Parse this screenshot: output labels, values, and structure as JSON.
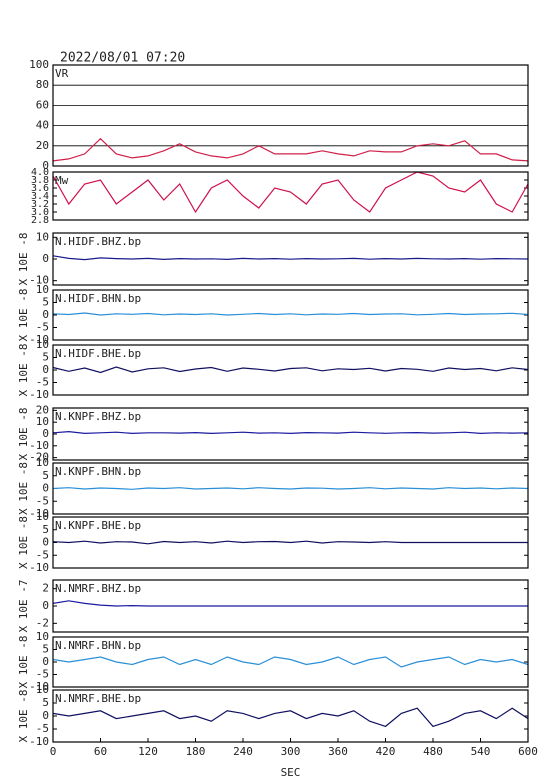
{
  "chart_data": [
    {
      "type": "line",
      "title": "2022/08/01  07:20",
      "label": "VR",
      "grid": true,
      "x": [
        0,
        20,
        40,
        60,
        80,
        100,
        120,
        140,
        160,
        180,
        200,
        220,
        240,
        260,
        280,
        300,
        320,
        340,
        360,
        380,
        400,
        420,
        440,
        460,
        480,
        500,
        520,
        540,
        560,
        580,
        600
      ],
      "xlim": [
        0,
        600
      ],
      "ylim": [
        0,
        100
      ],
      "yticks": [
        0,
        20,
        40,
        60,
        80,
        100
      ],
      "series": [
        {
          "color": "#d0204a",
          "values": [
            5,
            7,
            12,
            27,
            12,
            8,
            10,
            15,
            22,
            14,
            10,
            8,
            12,
            20,
            12,
            12,
            12,
            15,
            12,
            10,
            15,
            14,
            14,
            20,
            22,
            20,
            25,
            12,
            12,
            6,
            5
          ]
        }
      ]
    },
    {
      "type": "line",
      "label": "Mw",
      "grid": false,
      "x": [
        0,
        20,
        40,
        60,
        80,
        100,
        120,
        140,
        160,
        180,
        200,
        220,
        240,
        260,
        280,
        300,
        320,
        340,
        360,
        380,
        400,
        420,
        440,
        460,
        480,
        500,
        520,
        540,
        560,
        580,
        600
      ],
      "xlim": [
        0,
        600
      ],
      "ylim": [
        2.8,
        4.0
      ],
      "yticks": [
        {
          "value": 2.8,
          "label": "2.8"
        },
        {
          "value": 3.0,
          "label": "3.0"
        },
        {
          "value": 3.2,
          "label": "3.2"
        },
        {
          "value": 3.4,
          "label": "3.4"
        },
        {
          "value": 3.6,
          "label": "3.6"
        },
        {
          "value": 3.8,
          "label": "3.8"
        },
        {
          "value": 4.0,
          "label": "4.0"
        }
      ],
      "series": [
        {
          "color": "#d0104a",
          "values": [
            3.9,
            3.2,
            3.7,
            3.8,
            3.2,
            3.5,
            3.8,
            3.3,
            3.7,
            3.0,
            3.6,
            3.8,
            3.4,
            3.1,
            3.6,
            3.5,
            3.2,
            3.7,
            3.8,
            3.3,
            3.0,
            3.6,
            3.8,
            4.0,
            3.9,
            3.6,
            3.5,
            3.8,
            3.2,
            3.0,
            3.7
          ]
        }
      ]
    },
    {
      "type": "line",
      "label": "N.HIDF.BHZ.bp",
      "ylabel": "X 10E -8",
      "x": [
        0,
        20,
        40,
        60,
        80,
        100,
        120,
        140,
        160,
        180,
        200,
        220,
        240,
        260,
        280,
        300,
        320,
        340,
        360,
        380,
        400,
        420,
        440,
        460,
        480,
        500,
        520,
        540,
        560,
        580,
        600
      ],
      "xlim": [
        0,
        600
      ],
      "ylim": [
        -12,
        12
      ],
      "yticks": [
        -10,
        0,
        10
      ],
      "series": [
        {
          "color": "#1a1a8c",
          "values": [
            1.5,
            0.3,
            -0.3,
            0.5,
            0.2,
            0,
            0.3,
            -0.2,
            0.2,
            0,
            0.1,
            -0.2,
            0.3,
            0,
            0.2,
            -0.1,
            0.2,
            0,
            0.1,
            0.3,
            -0.1,
            0.2,
            0,
            0.3,
            0.1,
            0,
            0.2,
            -0.1,
            0.2,
            0.1,
            0
          ]
        }
      ]
    },
    {
      "type": "line",
      "label": "N.HIDF.BHN.bp",
      "ylabel": "X 10E -8",
      "x": [
        0,
        20,
        40,
        60,
        80,
        100,
        120,
        140,
        160,
        180,
        200,
        220,
        240,
        260,
        280,
        300,
        320,
        340,
        360,
        380,
        400,
        420,
        440,
        460,
        480,
        500,
        520,
        540,
        560,
        580,
        600
      ],
      "xlim": [
        0,
        600
      ],
      "ylim": [
        -10,
        10
      ],
      "yticks": [
        -10,
        -5,
        0,
        5,
        10
      ],
      "series": [
        {
          "color": "#2a8fd6",
          "values": [
            0.5,
            0.2,
            0.8,
            0,
            0.5,
            0.3,
            0.6,
            0.1,
            0.4,
            0.2,
            0.5,
            0,
            0.3,
            0.6,
            0.2,
            0.5,
            0.1,
            0.4,
            0.3,
            0.6,
            0.2,
            0.4,
            0.5,
            0.1,
            0.3,
            0.6,
            0.2,
            0.4,
            0.5,
            0.7,
            0.2
          ]
        }
      ]
    },
    {
      "type": "line",
      "label": "N.HIDF.BHE.bp",
      "ylabel": "X 10E -8",
      "x": [
        0,
        20,
        40,
        60,
        80,
        100,
        120,
        140,
        160,
        180,
        200,
        220,
        240,
        260,
        280,
        300,
        320,
        340,
        360,
        380,
        400,
        420,
        440,
        460,
        480,
        500,
        520,
        540,
        560,
        580,
        600
      ],
      "xlim": [
        0,
        600
      ],
      "ylim": [
        -10,
        10
      ],
      "yticks": [
        -10,
        -5,
        0,
        5,
        10
      ],
      "series": [
        {
          "color": "#101060",
          "values": [
            1,
            -0.5,
            0.8,
            -1,
            1.2,
            -0.8,
            0.5,
            0.9,
            -0.6,
            0.4,
            1,
            -0.5,
            0.8,
            0.3,
            -0.4,
            0.6,
            0.9,
            -0.3,
            0.5,
            0.2,
            0.7,
            -0.4,
            0.6,
            0.3,
            -0.5,
            0.8,
            0.2,
            0.6,
            -0.3,
            0.9,
            0.2
          ]
        }
      ]
    },
    {
      "type": "line",
      "label": "N.KNPF.BHZ.bp",
      "ylabel": "X 10E -8",
      "x": [
        0,
        20,
        40,
        60,
        80,
        100,
        120,
        140,
        160,
        180,
        200,
        220,
        240,
        260,
        280,
        300,
        320,
        340,
        360,
        380,
        400,
        420,
        440,
        460,
        480,
        500,
        520,
        540,
        560,
        580,
        600
      ],
      "xlim": [
        0,
        600
      ],
      "ylim": [
        -22,
        22
      ],
      "yticks": [
        -20,
        -10,
        0,
        10,
        20
      ],
      "series": [
        {
          "color": "#1a1aa0",
          "values": [
            1,
            2,
            0.5,
            1,
            1.5,
            0.5,
            1,
            1,
            0.8,
            1.2,
            0.5,
            1,
            1.5,
            0.8,
            1,
            0.5,
            1.2,
            1,
            0.8,
            1.5,
            1,
            0.6,
            1,
            1.2,
            0.8,
            1,
            1.5,
            0.5,
            1,
            0.8,
            1
          ]
        }
      ]
    },
    {
      "type": "line",
      "label": "N.KNPF.BHN.bp",
      "ylabel": "X 10E -8",
      "x": [
        0,
        20,
        40,
        60,
        80,
        100,
        120,
        140,
        160,
        180,
        200,
        220,
        240,
        260,
        280,
        300,
        320,
        340,
        360,
        380,
        400,
        420,
        440,
        460,
        480,
        500,
        520,
        540,
        560,
        580,
        600
      ],
      "xlim": [
        0,
        600
      ],
      "ylim": [
        -10,
        10
      ],
      "yticks": [
        -10,
        -5,
        0,
        5,
        10
      ],
      "series": [
        {
          "color": "#2a8fd6",
          "values": [
            0,
            0.3,
            -0.2,
            0.2,
            0,
            -0.3,
            0.2,
            0,
            0.3,
            -0.2,
            0,
            0.2,
            -0.1,
            0.3,
            0,
            -0.2,
            0.2,
            0.1,
            -0.2,
            0,
            0.3,
            -0.1,
            0.2,
            0,
            -0.2,
            0.3,
            0,
            0.2,
            -0.1,
            0.2,
            0
          ]
        }
      ]
    },
    {
      "type": "line",
      "label": "N.KNPF.BHE.bp",
      "ylabel": "X 10E -8",
      "x": [
        0,
        20,
        40,
        60,
        80,
        100,
        120,
        140,
        160,
        180,
        200,
        220,
        240,
        260,
        280,
        300,
        320,
        340,
        360,
        380,
        400,
        420,
        440,
        460,
        480,
        500,
        520,
        540,
        560,
        580,
        600
      ],
      "xlim": [
        0,
        600
      ],
      "ylim": [
        -10,
        10
      ],
      "yticks": [
        -10,
        -5,
        0,
        5,
        10
      ],
      "series": [
        {
          "color": "#101060",
          "values": [
            0.3,
            0,
            0.5,
            -0.2,
            0.3,
            0.2,
            -0.5,
            0.4,
            0,
            0.3,
            -0.2,
            0.5,
            0,
            0.3,
            0.4,
            0,
            0.5,
            -0.2,
            0.3,
            0.2,
            0,
            0.3,
            0,
            0,
            0,
            0,
            0,
            0,
            0,
            0,
            0
          ]
        }
      ]
    },
    {
      "type": "line",
      "label": "N.NMRF.BHZ.bp",
      "ylabel": "X 10E -7",
      "x": [
        0,
        20,
        40,
        60,
        80,
        100,
        120,
        140,
        160,
        180,
        200,
        220,
        240,
        260,
        280,
        300,
        320,
        340,
        360,
        380,
        400,
        420,
        440,
        460,
        480,
        500,
        520,
        540,
        560,
        580,
        600
      ],
      "xlim": [
        0,
        600
      ],
      "ylim": [
        -3,
        3
      ],
      "yticks": [
        -2,
        0,
        2
      ],
      "series": [
        {
          "color": "#1a1aa0",
          "values": [
            0.3,
            0.6,
            0.3,
            0.1,
            0,
            0.05,
            0,
            0,
            0,
            0,
            0,
            0,
            0,
            0,
            0,
            0,
            0,
            0,
            0,
            0,
            0,
            0,
            0,
            0,
            0,
            0,
            0,
            0,
            0,
            0,
            0
          ]
        }
      ]
    },
    {
      "type": "line",
      "label": "N.NMRF.BHN.bp",
      "ylabel": "X 10E -8",
      "x": [
        0,
        20,
        40,
        60,
        80,
        100,
        120,
        140,
        160,
        180,
        200,
        220,
        240,
        260,
        280,
        300,
        320,
        340,
        360,
        380,
        400,
        420,
        440,
        460,
        480,
        500,
        520,
        540,
        560,
        580,
        600
      ],
      "xlim": [
        0,
        600
      ],
      "ylim": [
        -10,
        10
      ],
      "yticks": [
        -10,
        -5,
        0,
        5,
        10
      ],
      "series": [
        {
          "color": "#2a8fd6",
          "values": [
            1,
            0,
            1,
            2,
            0,
            -1,
            1,
            2,
            -1,
            1,
            -1,
            2,
            0,
            -1,
            2,
            1,
            -1,
            0,
            2,
            -1,
            1,
            2,
            -2,
            0,
            1,
            2,
            -1,
            1,
            0,
            1,
            -1
          ]
        }
      ]
    },
    {
      "type": "line",
      "label": "N.NMRF.BHE.bp",
      "ylabel": "X 10E -8",
      "xlabel": "SEC",
      "x": [
        0,
        20,
        40,
        60,
        80,
        100,
        120,
        140,
        160,
        180,
        200,
        220,
        240,
        260,
        280,
        300,
        320,
        340,
        360,
        380,
        400,
        420,
        440,
        460,
        480,
        500,
        520,
        540,
        560,
        580,
        600
      ],
      "xlim": [
        0,
        600
      ],
      "xticks": [
        0,
        60,
        120,
        180,
        240,
        300,
        360,
        420,
        480,
        540,
        600
      ],
      "ylim": [
        -10,
        10
      ],
      "yticks": [
        -10,
        -5,
        0,
        5,
        10
      ],
      "series": [
        {
          "color": "#101060",
          "values": [
            1,
            0,
            1,
            2,
            -1,
            0,
            1,
            2,
            -1,
            0,
            -2,
            2,
            1,
            -1,
            1,
            2,
            -1,
            1,
            0,
            2,
            -2,
            -4,
            1,
            3,
            -4,
            -2,
            1,
            2,
            -1,
            3,
            -1
          ]
        }
      ]
    }
  ]
}
